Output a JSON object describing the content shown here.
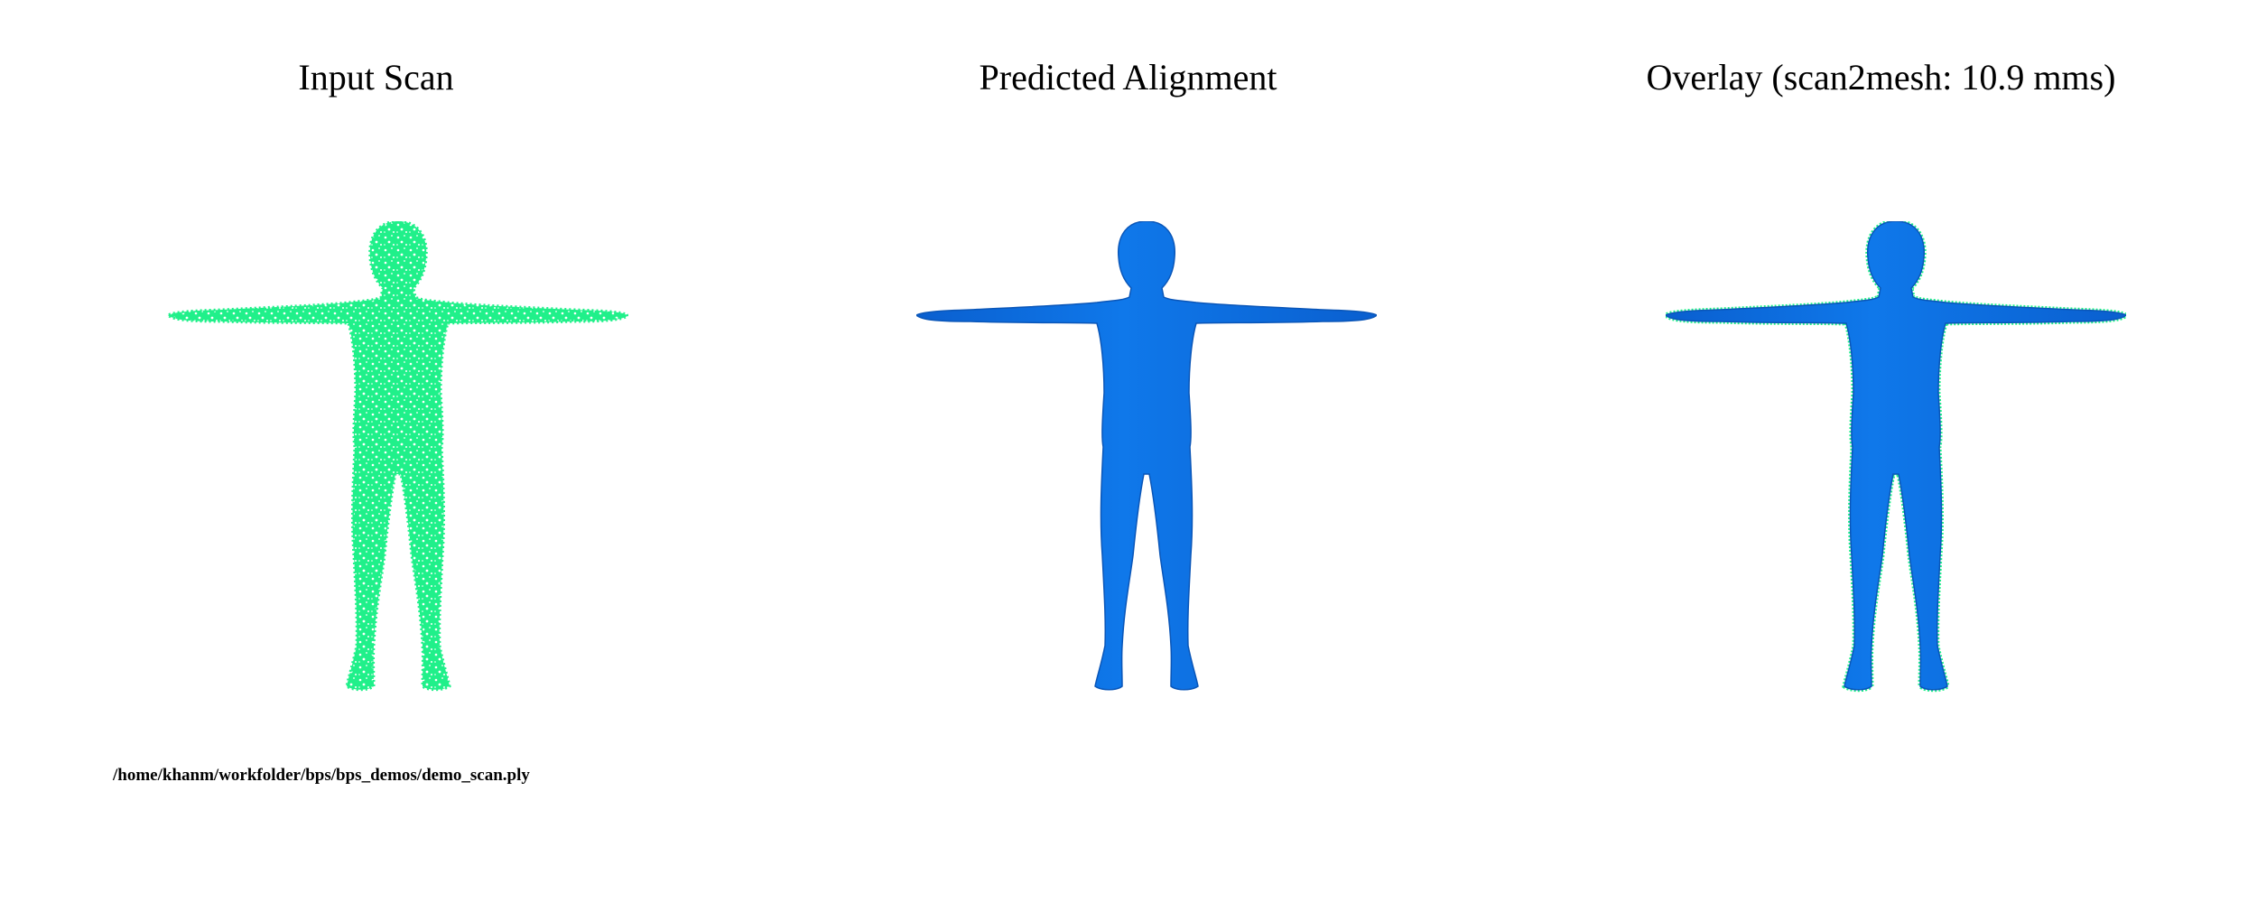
{
  "panels": [
    {
      "title": "Input Scan",
      "render": "point-cloud",
      "color": "#20f08a"
    },
    {
      "title": "Predicted Alignment",
      "render": "mesh",
      "color": "#0a6fe0"
    },
    {
      "title": "Overlay (scan2mesh: 10.9 mms)",
      "render": "overlay",
      "color": "#0a6fe0",
      "scan_color": "#20f08a"
    }
  ],
  "file_path": "/home/khanm/workfolder/bps/bps_demos/demo_scan.ply"
}
